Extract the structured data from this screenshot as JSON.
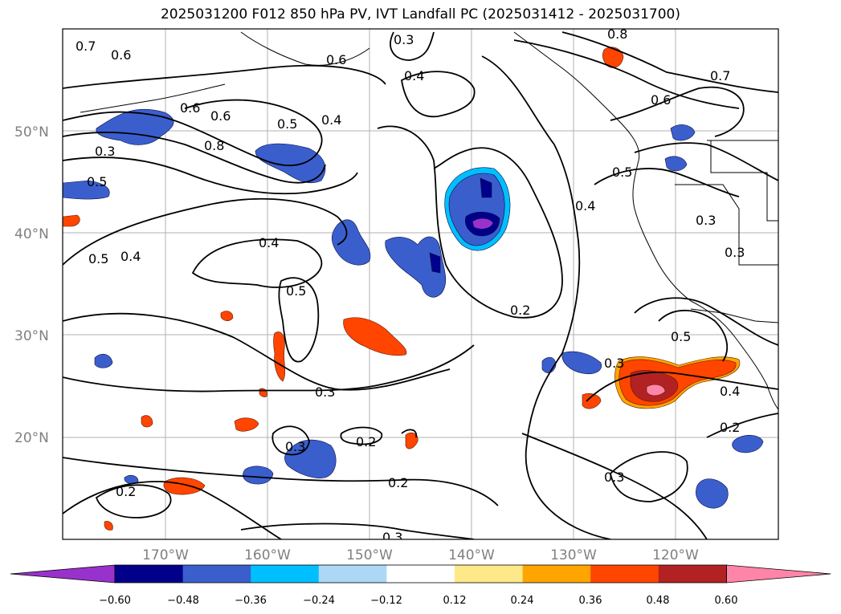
{
  "title": "2025031200 F012 850 hPa PV, IVT Landfall PC (2025031412 - 2025031700)",
  "map": {
    "projection": "PlateCarree",
    "lon_range": [
      -180,
      -110
    ],
    "lat_range": [
      10,
      60
    ],
    "gridlines": true,
    "lat_labels": [
      "50°N",
      "40°N",
      "30°N",
      "20°N"
    ],
    "lon_labels": [
      "170°W",
      "160°W",
      "150°W",
      "140°W",
      "130°W",
      "120°W"
    ]
  },
  "colorbar": {
    "extend": "both",
    "colors": [
      "#9932cc",
      "#00008b",
      "#3a5fcd",
      "#00bfff",
      "#add8f5",
      "#ffffff",
      "#fde98a",
      "#ffa500",
      "#ff4500",
      "#b22222",
      "#ff85a8"
    ],
    "tick_labels": [
      "−0.60",
      "−0.48",
      "−0.36",
      "−0.24",
      "−0.12",
      "0.12",
      "0.24",
      "0.36",
      "0.48",
      "0.60"
    ]
  },
  "contour_labels": [
    "0.7",
    "0.6",
    "0.3",
    "0.6",
    "0.8",
    "0.4",
    "0.7",
    "0.6",
    "0.6",
    "0.5",
    "0.4",
    "0.3",
    "0.8",
    "0.6",
    "0.5",
    "0.5",
    "0.4",
    "0.5",
    "0.4",
    "0.4",
    "0.3",
    "0.3",
    "0.5",
    "0.2",
    "0.3",
    "0.3",
    "0.3",
    "0.4",
    "0.5",
    "0.2",
    "0.2",
    "0.3",
    "0.2",
    "0.2",
    "0.3"
  ]
}
